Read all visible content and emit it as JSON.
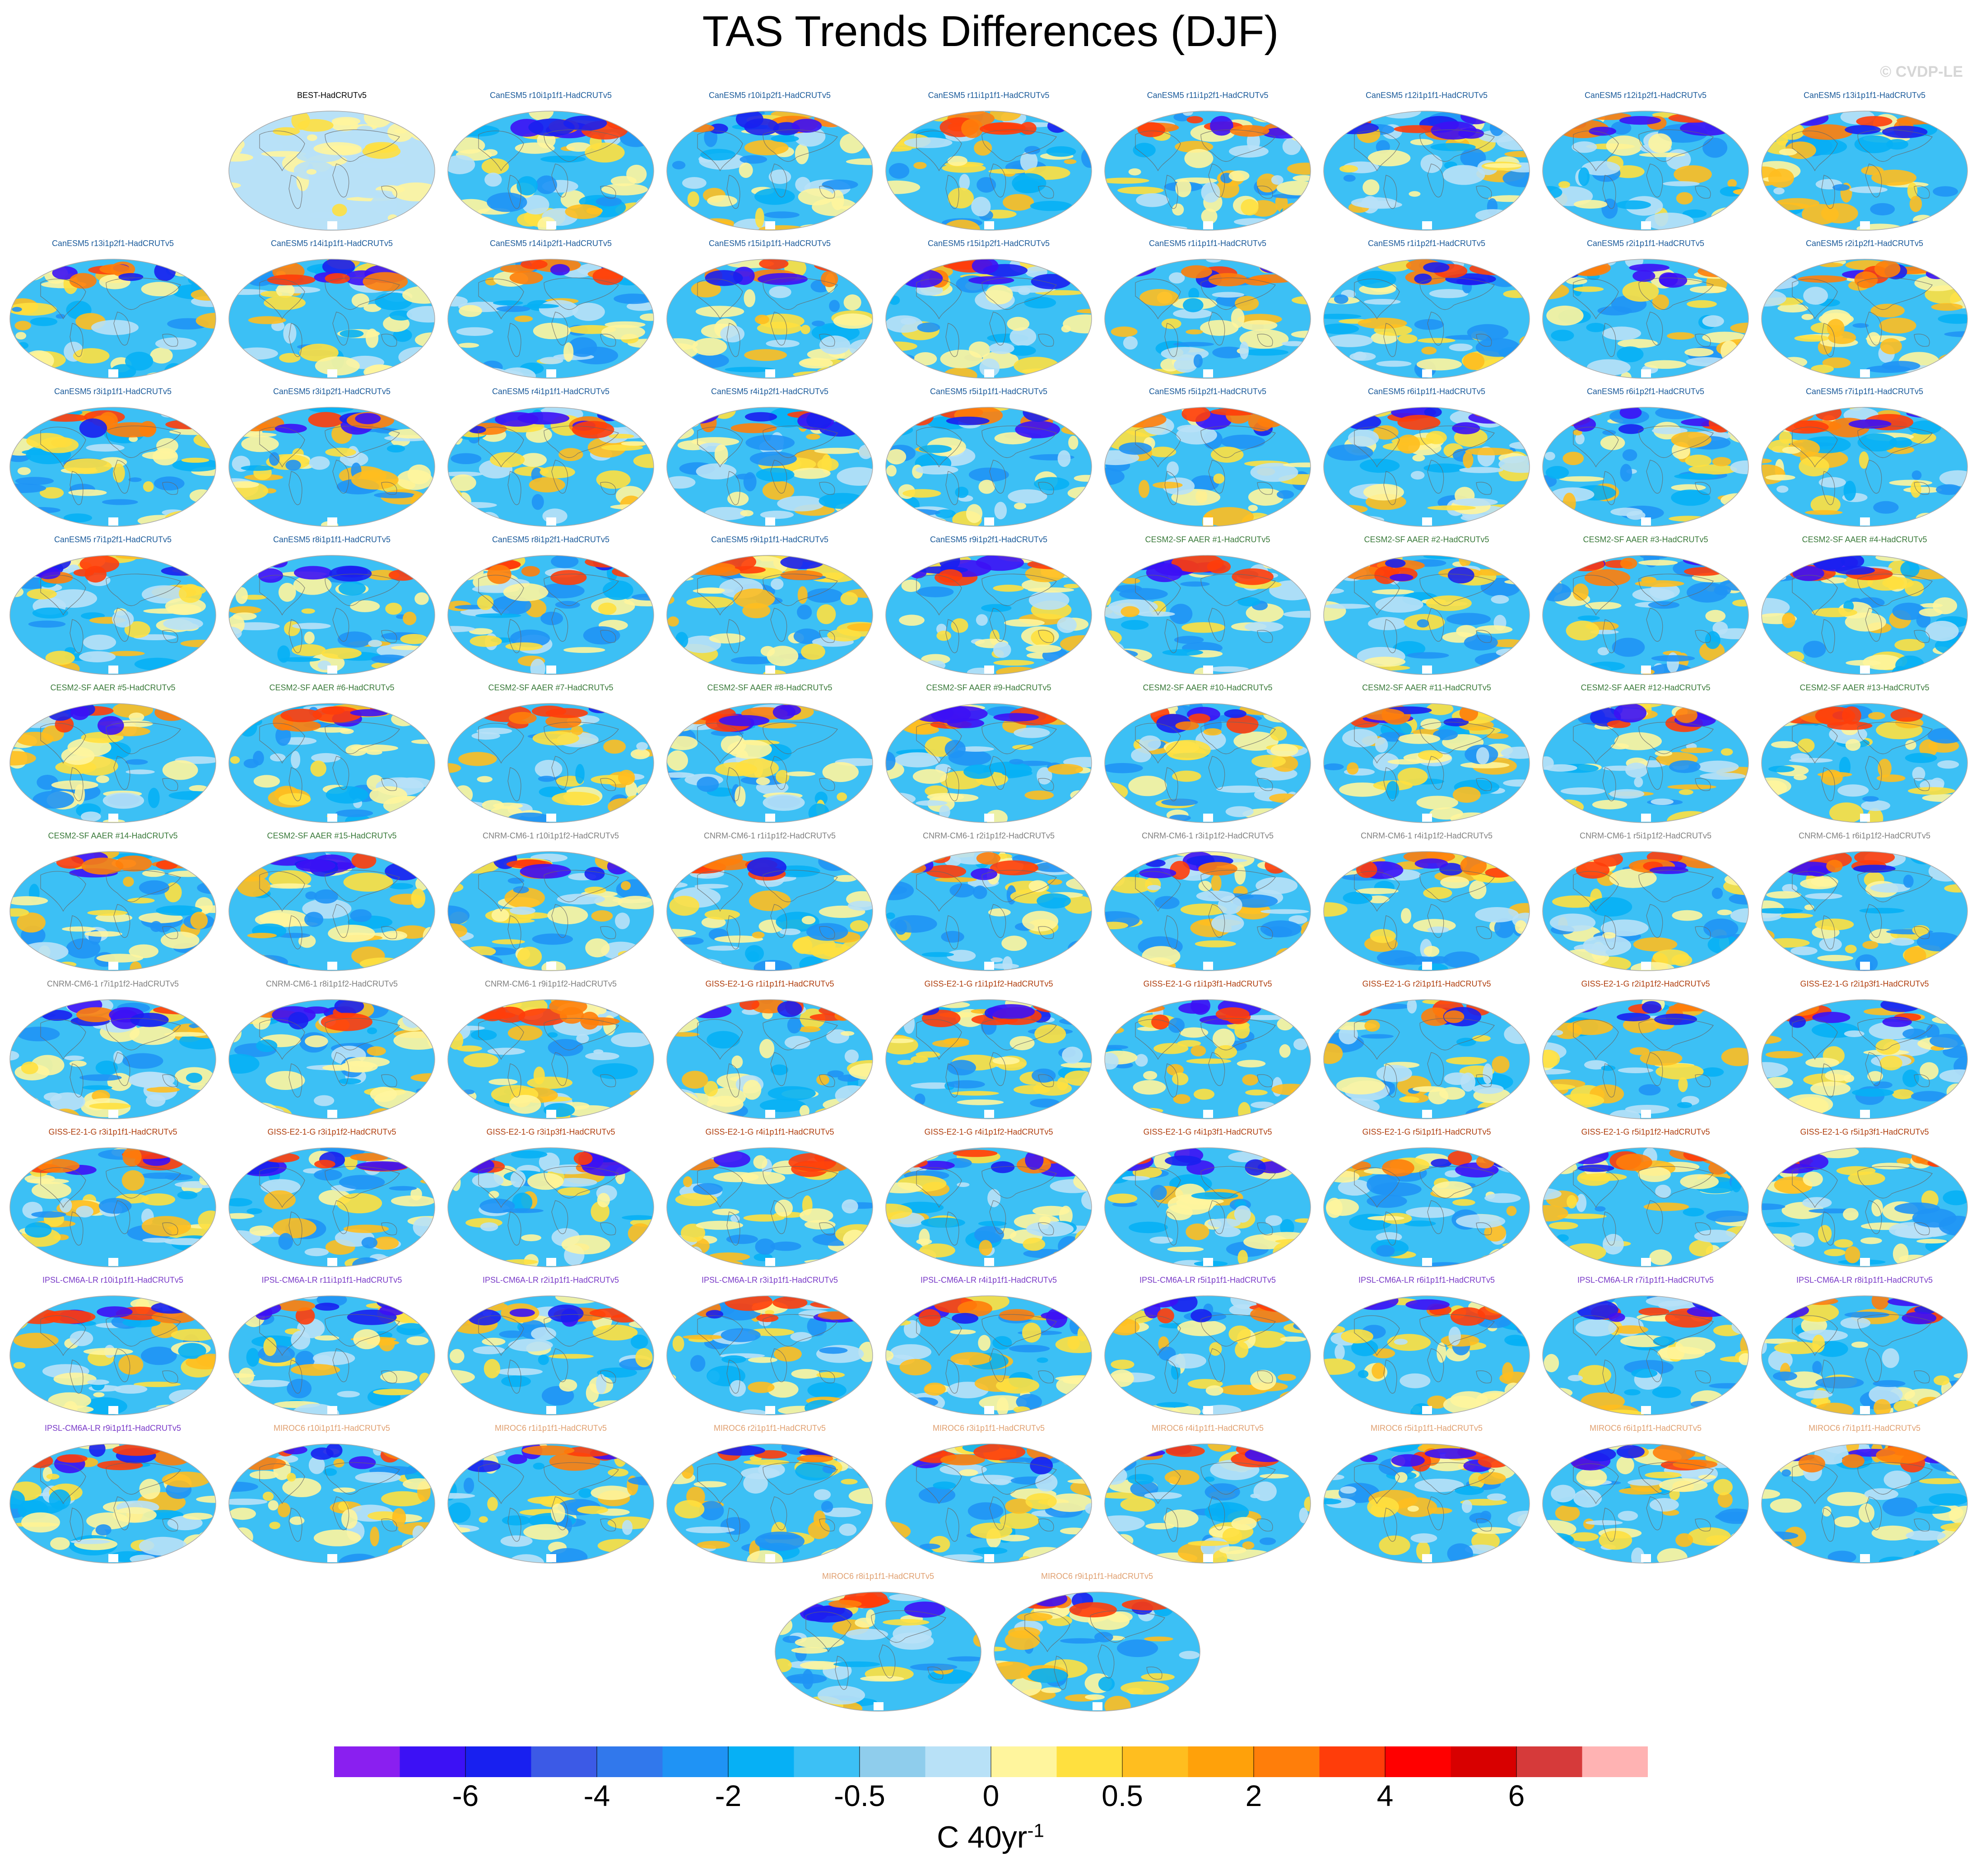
{
  "title": "TAS Trends Differences (DJF)",
  "copyright": "© CVDP-LE",
  "chart_data": {
    "type": "heatmap",
    "title": "TAS Trends Differences (DJF)",
    "colorbar": {
      "units_base": "C 40yr",
      "units_exp": "-1",
      "colors": [
        "#8a1ff0",
        "#3c11f5",
        "#1820f0",
        "#3c5ae6",
        "#3178ec",
        "#1f93f5",
        "#06b0f5",
        "#3cc0f5",
        "#8fcdec",
        "#b8e1f7",
        "#fff59d",
        "#ffe03f",
        "#ffbe1f",
        "#ffa10a",
        "#ff7e0a",
        "#ff3d0a",
        "#ff0000",
        "#d80000",
        "#d63a3a",
        "#ffb3b3"
      ],
      "tick_labels": [
        "-6",
        "-4",
        "-2",
        "-0.5",
        "0",
        "0.5",
        "2",
        "4",
        "6"
      ],
      "tick_boundaries": [
        2,
        4,
        6,
        8,
        10,
        12,
        14,
        16,
        18
      ]
    },
    "panels": [
      {
        "label": "BEST-HadCRUTv5",
        "group": "obs"
      },
      {
        "label": "CanESM5 r10i1p1f1-HadCRUTv5",
        "group": "CanESM5"
      },
      {
        "label": "CanESM5 r10i1p2f1-HadCRUTv5",
        "group": "CanESM5"
      },
      {
        "label": "CanESM5 r11i1p1f1-HadCRUTv5",
        "group": "CanESM5"
      },
      {
        "label": "CanESM5 r11i1p2f1-HadCRUTv5",
        "group": "CanESM5"
      },
      {
        "label": "CanESM5 r12i1p1f1-HadCRUTv5",
        "group": "CanESM5"
      },
      {
        "label": "CanESM5 r12i1p2f1-HadCRUTv5",
        "group": "CanESM5"
      },
      {
        "label": "CanESM5 r13i1p1f1-HadCRUTv5",
        "group": "CanESM5"
      },
      {
        "label": "CanESM5 r13i1p2f1-HadCRUTv5",
        "group": "CanESM5"
      },
      {
        "label": "CanESM5 r14i1p1f1-HadCRUTv5",
        "group": "CanESM5"
      },
      {
        "label": "CanESM5 r14i1p2f1-HadCRUTv5",
        "group": "CanESM5"
      },
      {
        "label": "CanESM5 r15i1p1f1-HadCRUTv5",
        "group": "CanESM5"
      },
      {
        "label": "CanESM5 r15i1p2f1-HadCRUTv5",
        "group": "CanESM5"
      },
      {
        "label": "CanESM5 r1i1p1f1-HadCRUTv5",
        "group": "CanESM5"
      },
      {
        "label": "CanESM5 r1i1p2f1-HadCRUTv5",
        "group": "CanESM5"
      },
      {
        "label": "CanESM5 r2i1p1f1-HadCRUTv5",
        "group": "CanESM5"
      },
      {
        "label": "CanESM5 r2i1p2f1-HadCRUTv5",
        "group": "CanESM5"
      },
      {
        "label": "CanESM5 r3i1p1f1-HadCRUTv5",
        "group": "CanESM5"
      },
      {
        "label": "CanESM5 r3i1p2f1-HadCRUTv5",
        "group": "CanESM5"
      },
      {
        "label": "CanESM5 r4i1p1f1-HadCRUTv5",
        "group": "CanESM5"
      },
      {
        "label": "CanESM5 r4i1p2f1-HadCRUTv5",
        "group": "CanESM5"
      },
      {
        "label": "CanESM5 r5i1p1f1-HadCRUTv5",
        "group": "CanESM5"
      },
      {
        "label": "CanESM5 r5i1p2f1-HadCRUTv5",
        "group": "CanESM5"
      },
      {
        "label": "CanESM5 r6i1p1f1-HadCRUTv5",
        "group": "CanESM5"
      },
      {
        "label": "CanESM5 r6i1p2f1-HadCRUTv5",
        "group": "CanESM5"
      },
      {
        "label": "CanESM5 r7i1p1f1-HadCRUTv5",
        "group": "CanESM5"
      },
      {
        "label": "CanESM5 r7i1p2f1-HadCRUTv5",
        "group": "CanESM5"
      },
      {
        "label": "CanESM5 r8i1p1f1-HadCRUTv5",
        "group": "CanESM5"
      },
      {
        "label": "CanESM5 r8i1p2f1-HadCRUTv5",
        "group": "CanESM5"
      },
      {
        "label": "CanESM5 r9i1p1f1-HadCRUTv5",
        "group": "CanESM5"
      },
      {
        "label": "CanESM5 r9i1p2f1-HadCRUTv5",
        "group": "CanESM5"
      },
      {
        "label": "CESM2-SF AAER #1-HadCRUTv5",
        "group": "CESM2"
      },
      {
        "label": "CESM2-SF AAER #2-HadCRUTv5",
        "group": "CESM2"
      },
      {
        "label": "CESM2-SF AAER #3-HadCRUTv5",
        "group": "CESM2"
      },
      {
        "label": "CESM2-SF AAER #4-HadCRUTv5",
        "group": "CESM2"
      },
      {
        "label": "CESM2-SF AAER #5-HadCRUTv5",
        "group": "CESM2"
      },
      {
        "label": "CESM2-SF AAER #6-HadCRUTv5",
        "group": "CESM2"
      },
      {
        "label": "CESM2-SF AAER #7-HadCRUTv5",
        "group": "CESM2"
      },
      {
        "label": "CESM2-SF AAER #8-HadCRUTv5",
        "group": "CESM2"
      },
      {
        "label": "CESM2-SF AAER #9-HadCRUTv5",
        "group": "CESM2"
      },
      {
        "label": "CESM2-SF AAER #10-HadCRUTv5",
        "group": "CESM2"
      },
      {
        "label": "CESM2-SF AAER #11-HadCRUTv5",
        "group": "CESM2"
      },
      {
        "label": "CESM2-SF AAER #12-HadCRUTv5",
        "group": "CESM2"
      },
      {
        "label": "CESM2-SF AAER #13-HadCRUTv5",
        "group": "CESM2"
      },
      {
        "label": "CESM2-SF AAER #14-HadCRUTv5",
        "group": "CESM2"
      },
      {
        "label": "CESM2-SF AAER #15-HadCRUTv5",
        "group": "CESM2"
      },
      {
        "label": "CNRM-CM6-1 r10i1p1f2-HadCRUTv5",
        "group": "CNRM"
      },
      {
        "label": "CNRM-CM6-1 r1i1p1f2-HadCRUTv5",
        "group": "CNRM"
      },
      {
        "label": "CNRM-CM6-1 r2i1p1f2-HadCRUTv5",
        "group": "CNRM"
      },
      {
        "label": "CNRM-CM6-1 r3i1p1f2-HadCRUTv5",
        "group": "CNRM"
      },
      {
        "label": "CNRM-CM6-1 r4i1p1f2-HadCRUTv5",
        "group": "CNRM"
      },
      {
        "label": "CNRM-CM6-1 r5i1p1f2-HadCRUTv5",
        "group": "CNRM"
      },
      {
        "label": "CNRM-CM6-1 r6i1p1f2-HadCRUTv5",
        "group": "CNRM"
      },
      {
        "label": "CNRM-CM6-1 r7i1p1f2-HadCRUTv5",
        "group": "CNRM"
      },
      {
        "label": "CNRM-CM6-1 r8i1p1f2-HadCRUTv5",
        "group": "CNRM"
      },
      {
        "label": "CNRM-CM6-1 r9i1p1f2-HadCRUTv5",
        "group": "CNRM"
      },
      {
        "label": "GISS-E2-1-G r1i1p1f1-HadCRUTv5",
        "group": "GISS"
      },
      {
        "label": "GISS-E2-1-G r1i1p1f2-HadCRUTv5",
        "group": "GISS"
      },
      {
        "label": "GISS-E2-1-G r1i1p3f1-HadCRUTv5",
        "group": "GISS"
      },
      {
        "label": "GISS-E2-1-G r2i1p1f1-HadCRUTv5",
        "group": "GISS"
      },
      {
        "label": "GISS-E2-1-G r2i1p1f2-HadCRUTv5",
        "group": "GISS"
      },
      {
        "label": "GISS-E2-1-G r2i1p3f1-HadCRUTv5",
        "group": "GISS"
      },
      {
        "label": "GISS-E2-1-G r3i1p1f1-HadCRUTv5",
        "group": "GISS"
      },
      {
        "label": "GISS-E2-1-G r3i1p1f2-HadCRUTv5",
        "group": "GISS"
      },
      {
        "label": "GISS-E2-1-G r3i1p3f1-HadCRUTv5",
        "group": "GISS"
      },
      {
        "label": "GISS-E2-1-G r4i1p1f1-HadCRUTv5",
        "group": "GISS"
      },
      {
        "label": "GISS-E2-1-G r4i1p1f2-HadCRUTv5",
        "group": "GISS"
      },
      {
        "label": "GISS-E2-1-G r4i1p3f1-HadCRUTv5",
        "group": "GISS"
      },
      {
        "label": "GISS-E2-1-G r5i1p1f1-HadCRUTv5",
        "group": "GISS"
      },
      {
        "label": "GISS-E2-1-G r5i1p1f2-HadCRUTv5",
        "group": "GISS"
      },
      {
        "label": "GISS-E2-1-G r5i1p3f1-HadCRUTv5",
        "group": "GISS"
      },
      {
        "label": "IPSL-CM6A-LR r10i1p1f1-HadCRUTv5",
        "group": "IPSL"
      },
      {
        "label": "IPSL-CM6A-LR r11i1p1f1-HadCRUTv5",
        "group": "IPSL"
      },
      {
        "label": "IPSL-CM6A-LR r2i1p1f1-HadCRUTv5",
        "group": "IPSL"
      },
      {
        "label": "IPSL-CM6A-LR r3i1p1f1-HadCRUTv5",
        "group": "IPSL"
      },
      {
        "label": "IPSL-CM6A-LR r4i1p1f1-HadCRUTv5",
        "group": "IPSL"
      },
      {
        "label": "IPSL-CM6A-LR r5i1p1f1-HadCRUTv5",
        "group": "IPSL"
      },
      {
        "label": "IPSL-CM6A-LR r6i1p1f1-HadCRUTv5",
        "group": "IPSL"
      },
      {
        "label": "IPSL-CM6A-LR r7i1p1f1-HadCRUTv5",
        "group": "IPSL"
      },
      {
        "label": "IPSL-CM6A-LR r8i1p1f1-HadCRUTv5",
        "group": "IPSL"
      },
      {
        "label": "IPSL-CM6A-LR r9i1p1f1-HadCRUTv5",
        "group": "IPSL"
      },
      {
        "label": "MIROC6 r10i1p1f1-HadCRUTv5",
        "group": "MIROC6"
      },
      {
        "label": "MIROC6 r1i1p1f1-HadCRUTv5",
        "group": "MIROC6"
      },
      {
        "label": "MIROC6 r2i1p1f1-HadCRUTv5",
        "group": "MIROC6"
      },
      {
        "label": "MIROC6 r3i1p1f1-HadCRUTv5",
        "group": "MIROC6"
      },
      {
        "label": "MIROC6 r4i1p1f1-HadCRUTv5",
        "group": "MIROC6"
      },
      {
        "label": "MIROC6 r5i1p1f1-HadCRUTv5",
        "group": "MIROC6"
      },
      {
        "label": "MIROC6 r6i1p1f1-HadCRUTv5",
        "group": "MIROC6"
      },
      {
        "label": "MIROC6 r7i1p1f1-HadCRUTv5",
        "group": "MIROC6"
      },
      {
        "label": "MIROC6 r8i1p1f1-HadCRUTv5",
        "group": "MIROC6"
      },
      {
        "label": "MIROC6 r9i1p1f1-HadCRUTv5",
        "group": "MIROC6"
      }
    ],
    "group_label_colors": {
      "obs": "#000000",
      "CanESM5": "#1a5a9a",
      "CESM2": "#3a7a3a",
      "CNRM": "#808080",
      "GISS": "#b04010",
      "IPSL": "#7a3ac8",
      "MIROC6": "#e0a070"
    }
  }
}
